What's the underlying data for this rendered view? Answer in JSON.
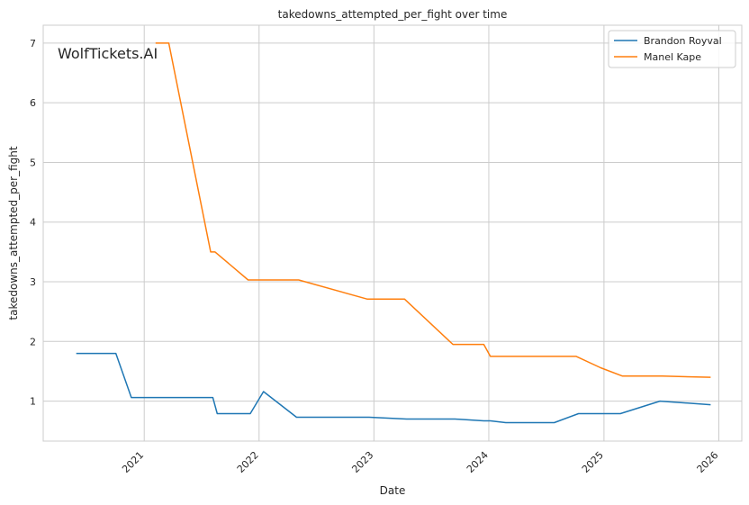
{
  "chart_data": {
    "type": "line",
    "title": "takedowns_attempted_per_fight over time",
    "xlabel": "Date",
    "ylabel": "takedowns_attempted_per_fight",
    "watermark": "WolfTickets.AI",
    "xlim": [
      "2020-02-15",
      "2026-03-15"
    ],
    "ylim": [
      0.33,
      7.3
    ],
    "x_ticks": [
      "2021",
      "2022",
      "2023",
      "2024",
      "2025",
      "2026"
    ],
    "y_ticks": [
      1,
      2,
      3,
      4,
      5,
      6,
      7
    ],
    "grid": true,
    "legend_position": "top-right",
    "colors": {
      "series0": "#1f77b4",
      "series1": "#ff7f0e",
      "grid": "#cccccc",
      "axes": "#cccccc",
      "watermark": "#c0c0c0"
    },
    "series": [
      {
        "name": "Brandon Royval",
        "x": [
          "2020-05-30",
          "2020-10-03",
          "2020-11-21",
          "2021-08-07",
          "2021-08-21",
          "2021-12-04",
          "2022-01-15",
          "2022-04-30",
          "2022-12-17",
          "2023-04-15",
          "2023-09-16",
          "2023-12-16",
          "2024-01-06",
          "2024-02-24",
          "2024-07-27",
          "2024-10-12",
          "2025-02-22",
          "2025-06-28",
          "2025-12-06"
        ],
        "y": [
          1.8,
          1.8,
          1.06,
          1.06,
          0.79,
          0.79,
          1.16,
          0.73,
          0.73,
          0.7,
          0.7,
          0.67,
          0.67,
          0.64,
          0.64,
          0.79,
          0.79,
          1.0,
          0.94
        ]
      },
      {
        "name": "Manel Kape",
        "x": [
          "2021-02-06",
          "2021-03-20",
          "2021-07-31",
          "2021-08-14",
          "2021-11-27",
          "2022-05-07",
          "2022-12-10",
          "2023-04-08",
          "2023-09-09",
          "2023-12-16",
          "2024-01-06",
          "2024-10-05",
          "2024-12-21",
          "2025-03-01",
          "2025-07-05",
          "2025-12-06"
        ],
        "y": [
          7.0,
          7.0,
          3.5,
          3.5,
          3.03,
          3.03,
          2.71,
          2.71,
          1.95,
          1.95,
          1.75,
          1.75,
          1.56,
          1.42,
          1.42,
          1.4
        ]
      }
    ]
  }
}
